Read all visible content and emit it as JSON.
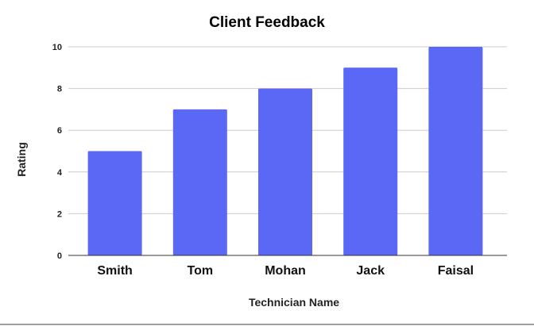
{
  "chart_data": {
    "type": "bar",
    "title": "Client Feedback",
    "xlabel": "Technician Name",
    "ylabel": "Rating",
    "categories": [
      "Smith",
      "Tom",
      "Mohan",
      "Jack",
      "Faisal"
    ],
    "values": [
      5,
      7,
      8,
      9,
      10
    ],
    "ylim": [
      0,
      10
    ],
    "yticks": [
      "0",
      "2",
      "4",
      "6",
      "8",
      "10"
    ],
    "grid": true,
    "legend": "none",
    "bar_color": "#5b67f5"
  }
}
